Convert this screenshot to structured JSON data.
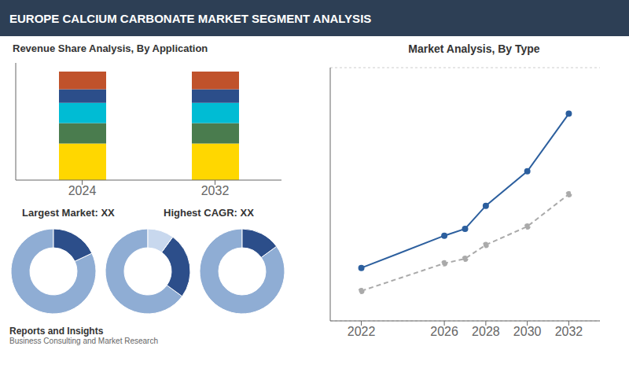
{
  "title": "EUROPE CALCIUM CARBONATE MARKET SEGMENT ANALYSIS",
  "annotations": [
    "Reports and Insights",
    "Business Consulting and Market Research"
  ],
  "chart_data": [
    {
      "type": "bar",
      "title": "Revenue Share Analysis, By Application",
      "categories": [
        "2024",
        "2032"
      ],
      "stacked": true,
      "series": [
        {
          "color": "#FFD700",
          "values": [
            0.27,
            0.27
          ]
        },
        {
          "color": "#4a7c4e",
          "values": [
            0.15,
            0.15
          ]
        },
        {
          "color": "#00bcd4",
          "values": [
            0.15,
            0.15
          ]
        },
        {
          "color": "#2c4e8a",
          "values": [
            0.1,
            0.1
          ]
        },
        {
          "color": "#c0522b",
          "values": [
            0.13,
            0.13
          ]
        }
      ],
      "ylim": [
        0,
        0.864
      ],
      "tick_labels": "x",
      "annotations": [
        "Largest Market: XX",
        "Highest CAGR: XX"
      ]
    },
    {
      "type": "pie",
      "values": [
        0.82,
        0.18
      ],
      "colors": [
        "#8fadd4",
        "#2c4e8a"
      ]
    },
    {
      "type": "pie",
      "values": [
        0.65,
        0.25,
        0.1
      ],
      "colors": [
        "#8fadd4",
        "#2c4e8a",
        "#c8d8ee"
      ]
    },
    {
      "type": "pie",
      "values": [
        0.85,
        0.15
      ],
      "colors": [
        "#8fadd4",
        "#2c4e8a"
      ]
    },
    {
      "type": "line",
      "title": "Market Analysis, By Type",
      "x": [
        2022,
        2026,
        2027,
        2028,
        2030,
        2032
      ],
      "series": [
        {
          "color": "#2c5f9e",
          "line_style": "solid",
          "marker": "circle",
          "values": [
            3.8,
            5.2,
            5.5,
            6.5,
            8.0,
            10.5
          ]
        },
        {
          "color": "#aaaaaa",
          "line_style": "dashed",
          "marker": "circle",
          "values": [
            2.8,
            4.0,
            4.2,
            4.8,
            5.6,
            7.0
          ]
        }
      ],
      "xlim": [
        2020.5,
        2033.5
      ],
      "xticks": [
        2022,
        2026,
        2028,
        2030,
        2032
      ],
      "ylim": [
        1.5,
        12.5
      ],
      "yticks": [
        2,
        4,
        6,
        8,
        10,
        12
      ],
      "grid": true,
      "tick_labels": "x"
    }
  ]
}
